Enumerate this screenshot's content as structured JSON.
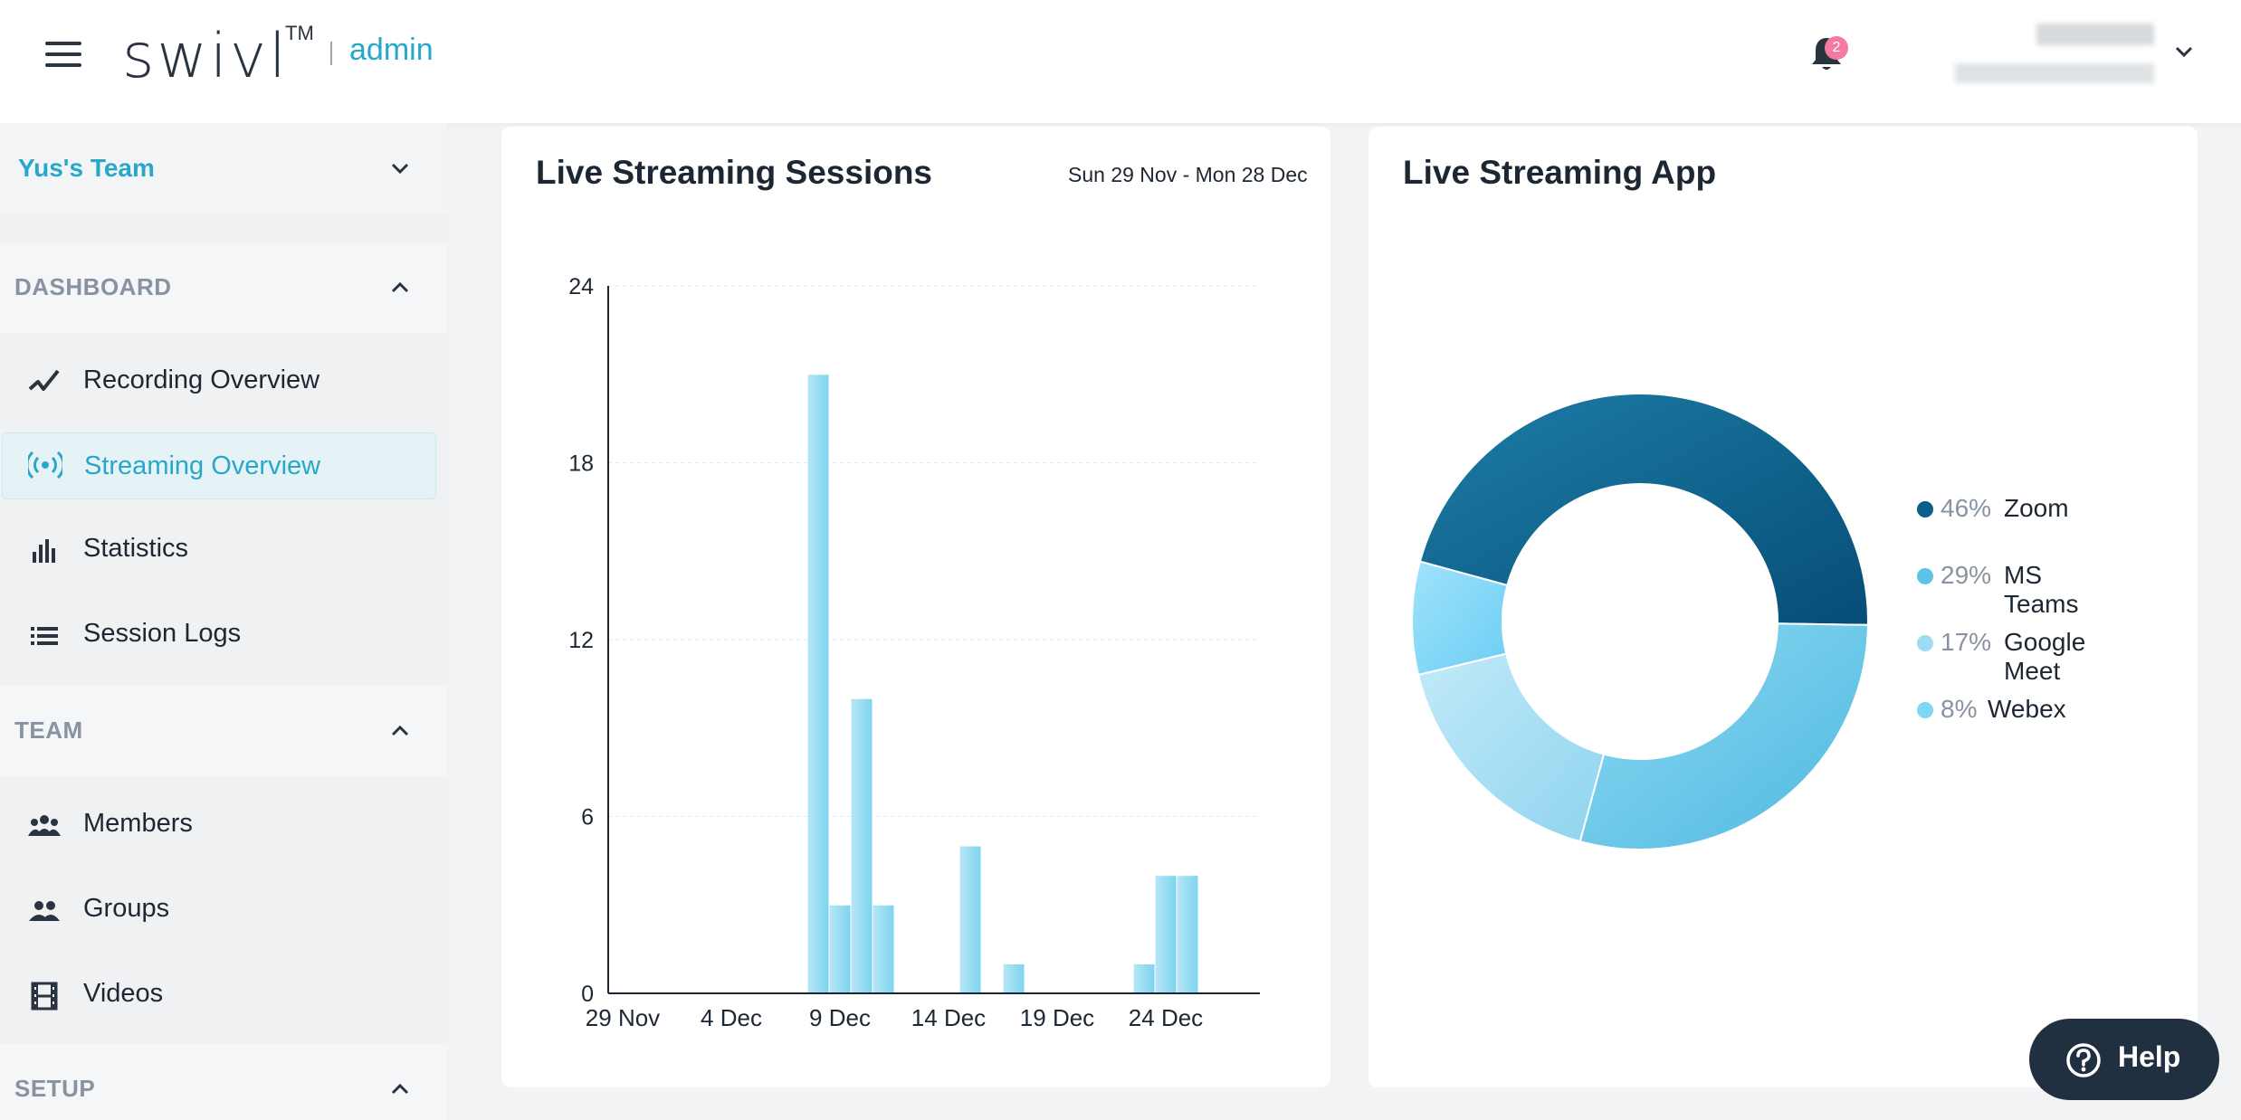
{
  "header": {
    "logo": "swivl",
    "logo_tm": "TM",
    "logo_sub": "admin",
    "notification_count": "2"
  },
  "sidebar": {
    "team_name": "Yus's Team",
    "sections": [
      {
        "title": "DASHBOARD",
        "items": [
          {
            "label": "Recording Overview",
            "icon": "trend-icon"
          },
          {
            "label": "Streaming Overview",
            "icon": "broadcast-icon",
            "active": true
          },
          {
            "label": "Statistics",
            "icon": "bar-chart-icon"
          },
          {
            "label": "Session Logs",
            "icon": "list-icon"
          }
        ]
      },
      {
        "title": "TEAM",
        "items": [
          {
            "label": "Members",
            "icon": "members-icon"
          },
          {
            "label": "Groups",
            "icon": "groups-icon"
          },
          {
            "label": "Videos",
            "icon": "film-icon"
          }
        ]
      },
      {
        "title": "SETUP",
        "items": []
      }
    ]
  },
  "sessions_card": {
    "title": "Live Streaming Sessions",
    "date_range": "Sun 29 Nov - Mon 28 Dec"
  },
  "app_card": {
    "title": "Live Streaming App"
  },
  "help": {
    "label": "Help"
  },
  "colors": {
    "accent": "#27a7c9",
    "bar": "#7dd3ef",
    "zoom": "#0a5f8a",
    "msteams": "#5cc3e6",
    "googlemeet": "#9fdcf2",
    "webex": "#7fd6f7"
  },
  "chart_data": [
    {
      "type": "bar",
      "title": "Live Streaming Sessions",
      "x_tick_labels": [
        "29 Nov",
        "4 Dec",
        "9 Dec",
        "14 Dec",
        "19 Dec",
        "24 Dec"
      ],
      "ylim": [
        0,
        24
      ],
      "y_ticks": [
        0,
        6,
        12,
        18,
        24
      ],
      "grid": true,
      "categories": [
        "29 Nov",
        "30 Nov",
        "1 Dec",
        "2 Dec",
        "3 Dec",
        "4 Dec",
        "5 Dec",
        "6 Dec",
        "7 Dec",
        "8 Dec",
        "9 Dec",
        "10 Dec",
        "11 Dec",
        "12 Dec",
        "13 Dec",
        "14 Dec",
        "15 Dec",
        "16 Dec",
        "17 Dec",
        "18 Dec",
        "19 Dec",
        "20 Dec",
        "21 Dec",
        "22 Dec",
        "23 Dec",
        "24 Dec",
        "25 Dec",
        "26 Dec",
        "27 Dec",
        "28 Dec"
      ],
      "values": [
        0,
        0,
        0,
        0,
        0,
        0,
        0,
        0,
        0,
        21,
        3,
        10,
        3,
        0,
        0,
        0,
        5,
        0,
        1,
        0,
        0,
        0,
        0,
        0,
        1,
        4,
        4,
        0,
        0,
        0
      ]
    },
    {
      "type": "pie",
      "title": "Live Streaming App",
      "labels": [
        "Zoom",
        "MS Teams",
        "Google Meet",
        "Webex"
      ],
      "values": [
        46,
        29,
        17,
        8
      ],
      "value_labels": [
        "46%",
        "29%",
        "17%",
        "8%"
      ],
      "legend": "right"
    }
  ]
}
